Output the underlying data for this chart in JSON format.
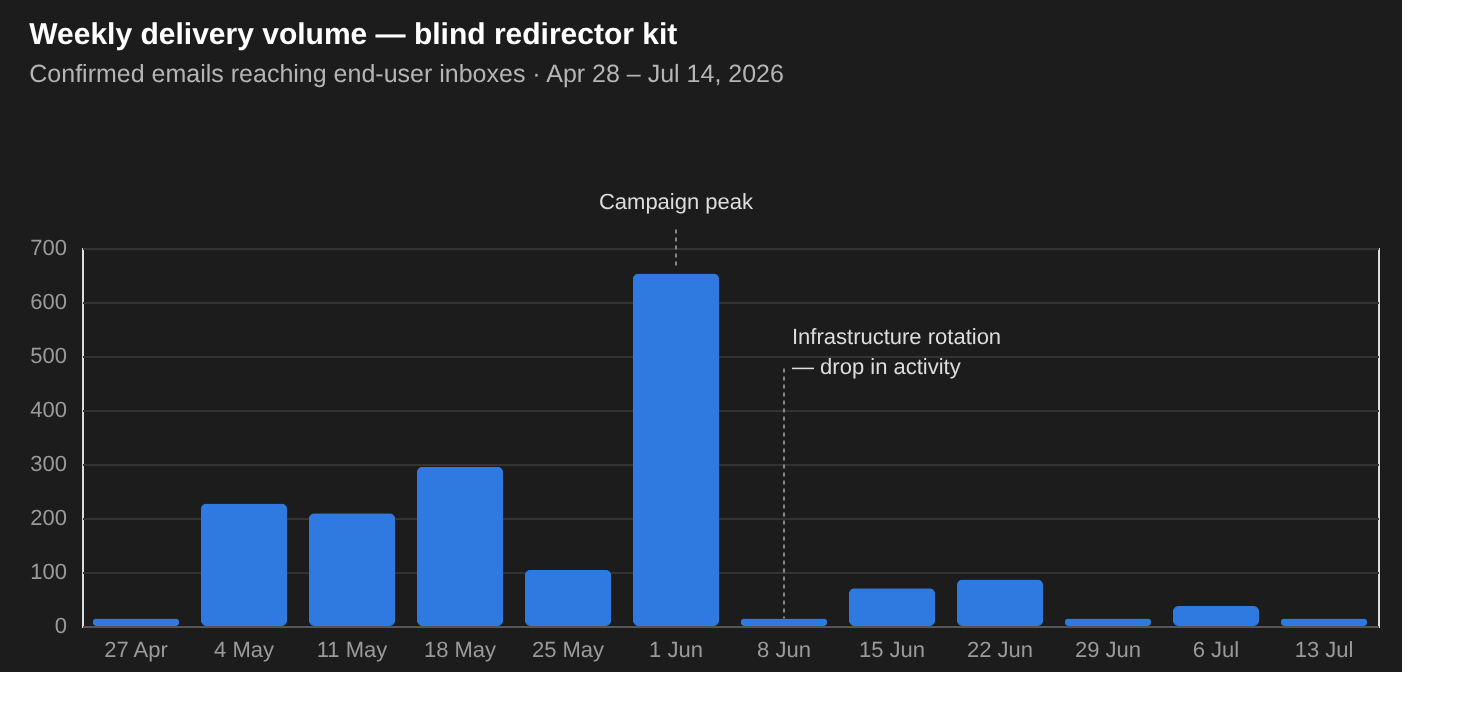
{
  "chart_data": {
    "type": "bar",
    "title": "Weekly delivery volume — blind redirector kit",
    "subtitle": "Confirmed emails reaching end-user inboxes · Apr 28 – Jul 14, 2026",
    "categories": [
      "27 Apr",
      "4 May",
      "11 May",
      "18 May",
      "25 May",
      "1 Jun",
      "8 Jun",
      "15 Jun",
      "22 Jun",
      "29 Jun",
      "6 Jul",
      "13 Jul"
    ],
    "values": [
      14,
      227,
      209,
      295,
      104,
      653,
      14,
      70,
      86,
      14,
      37,
      14
    ],
    "color": "#2f7ae0",
    "ylim": [
      0,
      700
    ],
    "yticks": [
      0,
      100,
      200,
      300,
      400,
      500,
      600,
      700
    ],
    "grid": "y",
    "annotations": [
      {
        "text": "Campaign peak",
        "x": "1 Jun",
        "y": 653
      },
      {
        "text": "Infrastructure rotation\n— drop in activity",
        "x": "8 Jun",
        "y": 14
      }
    ]
  }
}
